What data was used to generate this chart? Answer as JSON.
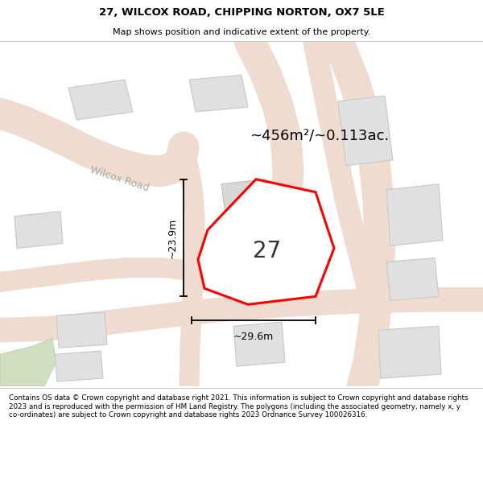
{
  "title_line1": "27, WILCOX ROAD, CHIPPING NORTON, OX7 5LE",
  "title_line2": "Map shows position and indicative extent of the property.",
  "area_label": "~456m²/~0.113ac.",
  "number_label": "27",
  "dim_height": "~23.9m",
  "dim_width": "~29.6m",
  "road_label": "Wilcox Road",
  "footer_text": "Contains OS data © Crown copyright and database right 2021. This information is subject to Crown copyright and database rights 2023 and is reproduced with the permission of HM Land Registry. The polygons (including the associated geometry, namely x, y co-ordinates) are subject to Crown copyright and database rights 2023 Ordnance Survey 100026316.",
  "bg_color": "#f9f6f2",
  "map_bg": "#f9f6f2",
  "plot_fill": "#ffffff",
  "plot_edge": "#ff0000",
  "road_fill": "#f5e8e0",
  "road_edge": "#e8c8b8",
  "building_fill": "#e0e0e0",
  "building_edge": "#c8c8c8",
  "dim_line_color": "#000000",
  "footer_bg": "#ffffff",
  "title_bg": "#ffffff",
  "green_fill": "#d0dfc0",
  "green_edge": "#b8ccaa",
  "road_label_color": "#aaaaaa",
  "label_color": "#333333"
}
